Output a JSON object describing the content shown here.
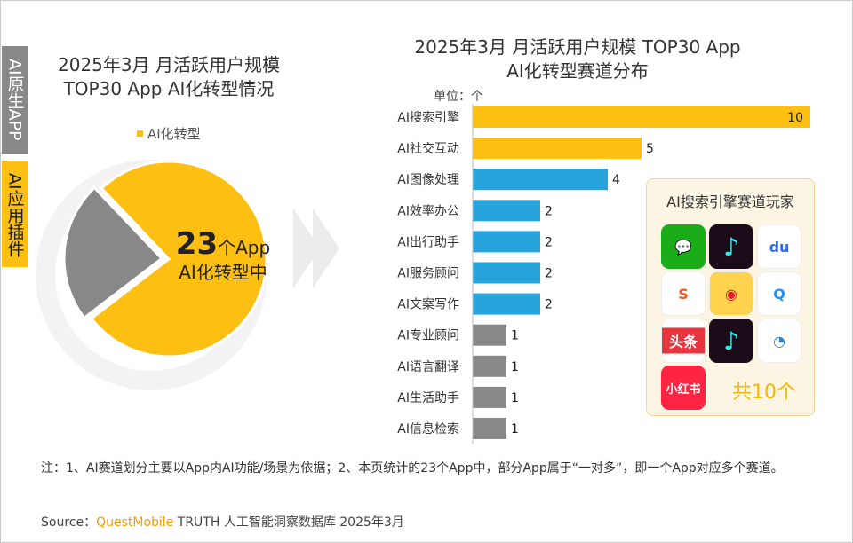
{
  "side_tabs": [
    {
      "label": "AI原生APP",
      "color": "#888888"
    },
    {
      "label": "AI应用插件",
      "color": "#fcbf12"
    }
  ],
  "left_title": [
    "2025年3月 月活跃用户规模",
    "TOP30 App AI化转型情况"
  ],
  "right_title": [
    "2025年3月 月活跃用户规模 TOP30 App",
    "AI化转型赛道分布"
  ],
  "unit": "单位：个",
  "center_label": {
    "number": "23",
    "suffix": "个App",
    "line2": "AI化转型中"
  },
  "chart_data": [
    {
      "type": "pie",
      "legend": [
        "AI化转型"
      ],
      "legend_placement": "top",
      "slices": [
        {
          "name": "AI化转型",
          "value": 23,
          "color": "#fcbf12"
        },
        {
          "value": 7,
          "color": "#888888"
        }
      ]
    },
    {
      "type": "bar",
      "orientation": "horizontal",
      "categories": [
        "AI搜索引擎",
        "AI社交互动",
        "AI图像处理",
        "AI效率办公",
        "AI出行助手",
        "AI服务顾问",
        "AI文案写作",
        "AI专业顾问",
        "AI语言翻译",
        "AI生活助手",
        "AI信息检索"
      ],
      "values": [
        10,
        5,
        4,
        2,
        2,
        2,
        2,
        1,
        1,
        1,
        1
      ],
      "colors": [
        "#fcbf12",
        "#fcbf12",
        "#27a4dc",
        "#27a4dc",
        "#27a4dc",
        "#27a4dc",
        "#27a4dc",
        "#888888",
        "#888888",
        "#888888",
        "#888888"
      ],
      "xlim": [
        0,
        10
      ],
      "grid": false
    }
  ],
  "panel": {
    "title": "AI搜索引擎赛道玩家",
    "count": "共10个",
    "apps": [
      {
        "name": "wechat",
        "color": "#1aad19",
        "glyph": "💬"
      },
      {
        "name": "douyin",
        "color": "#1c0b19",
        "glyph": "♪"
      },
      {
        "name": "baidu",
        "color": "#ffffff",
        "glyph": "du"
      },
      {
        "name": "sogou",
        "color": "#ffffff",
        "glyph": "S"
      },
      {
        "name": "weibo",
        "color": "#ffd34e",
        "glyph": "◉"
      },
      {
        "name": "qq-browser",
        "color": "#ffffff",
        "glyph": "Q"
      },
      {
        "name": "toutiao",
        "color": "#ffffff",
        "glyph": "头条"
      },
      {
        "name": "douyin-lite",
        "color": "#1c0b19",
        "glyph": "♪"
      },
      {
        "name": "tencent-news",
        "color": "#ffffff",
        "glyph": "◔"
      },
      {
        "name": "xiaohongshu",
        "color": "#ff2442",
        "glyph": "小红书"
      }
    ]
  },
  "note": "注：1、AI赛道划分主要以App内AI功能/场景为依据；2、本页统计的23个App中，部分App属于“一对多”，即一个App对应多个赛道。",
  "source": {
    "prefix": "Source：",
    "brand": "QuestMobile",
    "rest": " TRUTH 人工智能洞察数据库 2025年3月"
  },
  "watermark": "QUESTMOBILE"
}
